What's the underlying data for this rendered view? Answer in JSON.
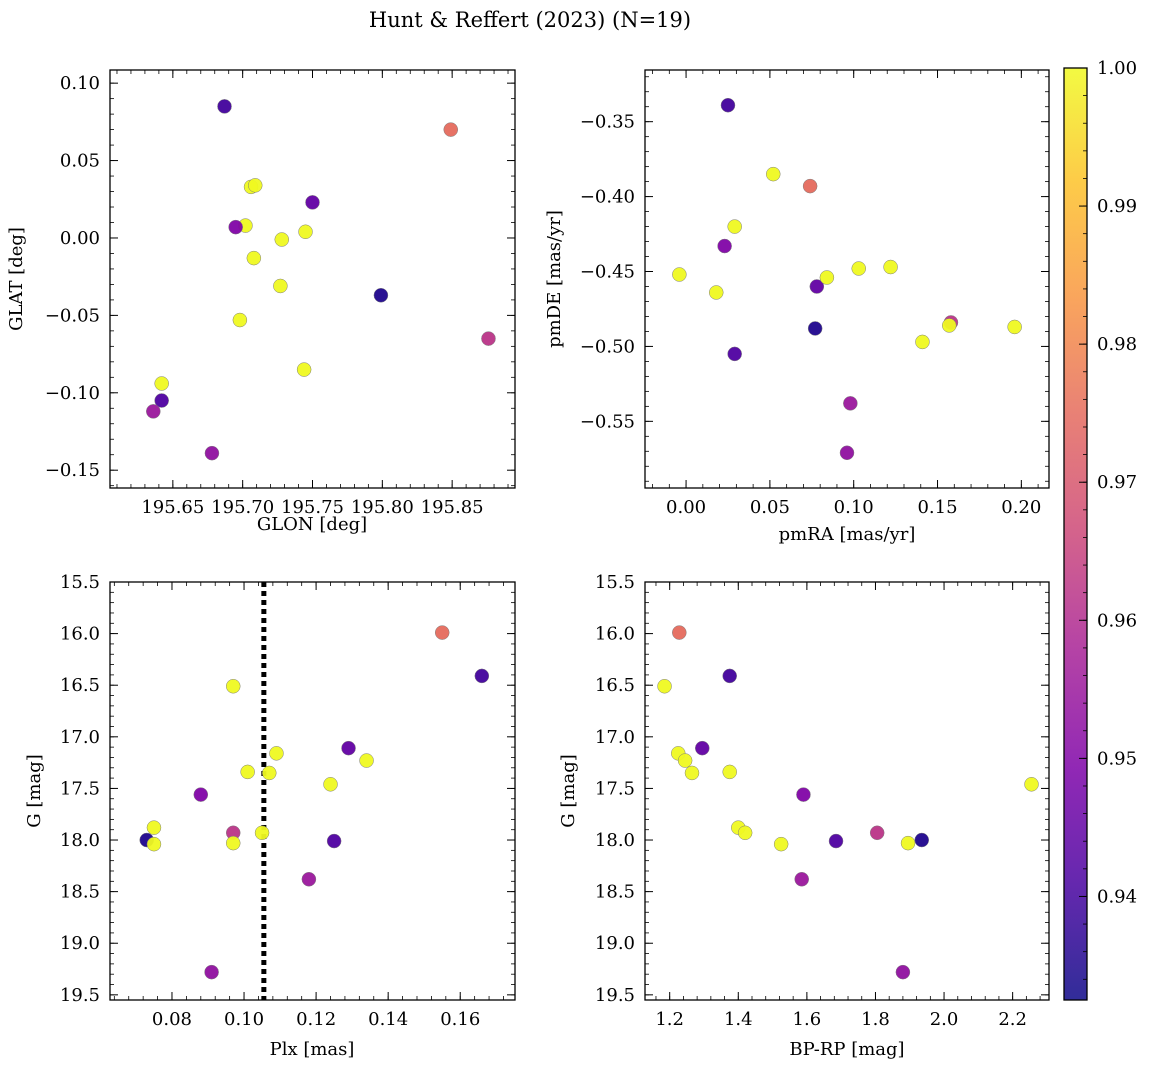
{
  "chart_data": {
    "type": "scatter",
    "title": "Hunt & Reffert (2023) (N=19)",
    "colormap": "plasma",
    "colorbar": {
      "range": [
        0.9325,
        1.0
      ],
      "ticks": [
        0.94,
        0.95,
        0.96,
        0.97,
        0.98,
        0.99,
        1.0
      ],
      "tick_labels": [
        "0.94",
        "0.95",
        "0.96",
        "0.97",
        "0.98",
        "0.99",
        "1.00"
      ]
    },
    "stars": [
      {
        "glon": 195.687,
        "glat": 0.085,
        "pmra": 0.025,
        "pmde": -0.339,
        "plx": 0.166,
        "g": 16.41,
        "bprp": 1.375,
        "c": 0.94
      },
      {
        "glon": 195.849,
        "glat": 0.07,
        "pmra": 0.074,
        "pmde": -0.393,
        "plx": 0.155,
        "g": 15.99,
        "bprp": 1.228,
        "c": 0.975
      },
      {
        "glon": 195.706,
        "glat": 0.033,
        "pmra": 0.052,
        "pmde": -0.385,
        "plx": 0.097,
        "g": 16.51,
        "bprp": 1.185,
        "c": 1.0
      },
      {
        "glon": 195.709,
        "glat": 0.034,
        "pmra": 0.029,
        "pmde": -0.42,
        "plx": 0.109,
        "g": 17.16,
        "bprp": 1.225,
        "c": 1.0
      },
      {
        "glon": 195.75,
        "glat": 0.023,
        "pmra": 0.078,
        "pmde": -0.46,
        "plx": 0.129,
        "g": 17.11,
        "bprp": 1.295,
        "c": 0.945
      },
      {
        "glon": 195.702,
        "glat": 0.008,
        "pmra": 0.122,
        "pmde": -0.447,
        "plx": 0.134,
        "g": 17.23,
        "bprp": 1.245,
        "c": 1.0
      },
      {
        "glon": 195.695,
        "glat": 0.007,
        "pmra": 0.023,
        "pmde": -0.433,
        "plx": 0.088,
        "g": 17.56,
        "bprp": 1.59,
        "c": 0.95
      },
      {
        "glon": 195.745,
        "glat": 0.004,
        "pmra": 0.103,
        "pmde": -0.448,
        "plx": 0.107,
        "g": 17.35,
        "bprp": 1.265,
        "c": 1.0
      },
      {
        "glon": 195.728,
        "glat": -0.001,
        "pmra": 0.084,
        "pmde": -0.454,
        "plx": 0.101,
        "g": 17.34,
        "bprp": 1.375,
        "c": 1.0
      },
      {
        "glon": 195.708,
        "glat": -0.013,
        "pmra": -0.004,
        "pmde": -0.452,
        "plx": 0.124,
        "g": 17.46,
        "bprp": 2.255,
        "c": 1.0
      },
      {
        "glon": 195.727,
        "glat": -0.031,
        "pmra": 0.018,
        "pmde": -0.464,
        "plx": 0.075,
        "g": 17.88,
        "bprp": 1.4,
        "c": 1.0
      },
      {
        "glon": 195.799,
        "glat": -0.037,
        "pmra": 0.077,
        "pmde": -0.488,
        "plx": 0.073,
        "g": 18.0,
        "bprp": 1.935,
        "c": 0.935
      },
      {
        "glon": 195.698,
        "glat": -0.053,
        "pmra": 0.141,
        "pmde": -0.497,
        "plx": 0.105,
        "g": 17.93,
        "bprp": 1.42,
        "c": 1.0
      },
      {
        "glon": 195.876,
        "glat": -0.065,
        "pmra": 0.158,
        "pmde": -0.484,
        "plx": 0.097,
        "g": 17.93,
        "bprp": 1.805,
        "c": 0.962
      },
      {
        "glon": 195.744,
        "glat": -0.085,
        "pmra": 0.157,
        "pmde": -0.486,
        "plx": 0.075,
        "g": 18.04,
        "bprp": 1.525,
        "c": 1.0
      },
      {
        "glon": 195.642,
        "glat": -0.094,
        "pmra": 0.196,
        "pmde": -0.487,
        "plx": 0.097,
        "g": 18.03,
        "bprp": 1.895,
        "c": 1.0
      },
      {
        "glon": 195.642,
        "glat": -0.105,
        "pmra": 0.029,
        "pmde": -0.505,
        "plx": 0.125,
        "g": 18.01,
        "bprp": 1.685,
        "c": 0.942
      },
      {
        "glon": 195.636,
        "glat": -0.112,
        "pmra": 0.098,
        "pmde": -0.538,
        "plx": 0.118,
        "g": 18.38,
        "bprp": 1.585,
        "c": 0.955
      },
      {
        "glon": 195.678,
        "glat": -0.139,
        "pmra": 0.096,
        "pmde": -0.571,
        "plx": 0.091,
        "g": 19.28,
        "bprp": 1.88,
        "c": 0.953
      }
    ],
    "panels": [
      {
        "id": "glon-glat",
        "x": "glon",
        "y": "glat",
        "xlabel": "GLON [deg]",
        "ylabel": "GLAT [deg]",
        "xlim": [
          195.605,
          195.895
        ],
        "ylim": [
          -0.1615,
          0.1085
        ],
        "yinvert": false,
        "xticks": [
          195.65,
          195.7,
          195.75,
          195.8,
          195.85
        ],
        "xticklabels": [
          "195.65",
          "195.70",
          "195.75",
          "195.80",
          "195.85"
        ],
        "yticks": [
          0.1,
          0.05,
          0.0,
          -0.05,
          -0.1,
          -0.15
        ],
        "yticklabels": [
          "0.10",
          "0.05",
          "0.00",
          "−0.05",
          "−0.10",
          "−0.15"
        ]
      },
      {
        "id": "pmra-pmde",
        "x": "pmra",
        "y": "pmde",
        "xlabel": "pmRA [mas/yr]",
        "ylabel": "pmDE [mas/yr]",
        "xlim": [
          -0.0245,
          0.2165
        ],
        "ylim": [
          -0.5945,
          -0.3155
        ],
        "yinvert": false,
        "xticks": [
          0.0,
          0.05,
          0.1,
          0.15,
          0.2
        ],
        "xticklabels": [
          "0.00",
          "0.05",
          "0.10",
          "0.15",
          "0.20"
        ],
        "yticks": [
          -0.35,
          -0.4,
          -0.45,
          -0.5,
          -0.55
        ],
        "yticklabels": [
          "−0.35",
          "−0.40",
          "−0.45",
          "−0.50",
          "−0.55"
        ]
      },
      {
        "id": "plx-g",
        "x": "plx",
        "y": "g",
        "xlabel": "Plx [mas]",
        "ylabel": "G [mag]",
        "xlim": [
          0.0628,
          0.1752
        ],
        "ylim": [
          15.5,
          19.55
        ],
        "yinvert": true,
        "xticks": [
          0.08,
          0.1,
          0.12,
          0.14,
          0.16
        ],
        "xticklabels": [
          "0.08",
          "0.10",
          "0.12",
          "0.14",
          "0.16"
        ],
        "yticks": [
          15.5,
          16.0,
          16.5,
          17.0,
          17.5,
          18.0,
          18.5,
          19.0,
          19.5
        ],
        "yticklabels": [
          "15.5",
          "16.0",
          "16.5",
          "17.0",
          "17.5",
          "18.0",
          "18.5",
          "19.0",
          "19.5"
        ],
        "vline": 0.1055
      },
      {
        "id": "bprp-g",
        "x": "bprp",
        "y": "g",
        "xlabel": "BP-RP [mag]",
        "ylabel": "G [mag]",
        "xlim": [
          1.128,
          2.306
        ],
        "ylim": [
          15.5,
          19.55
        ],
        "yinvert": true,
        "xticks": [
          1.2,
          1.4,
          1.6,
          1.8,
          2.0,
          2.2
        ],
        "xticklabels": [
          "1.2",
          "1.4",
          "1.6",
          "1.8",
          "2.0",
          "2.2"
        ],
        "yticks": [
          15.5,
          16.0,
          16.5,
          17.0,
          17.5,
          18.0,
          18.5,
          19.0,
          19.5
        ],
        "yticklabels": [
          "15.5",
          "16.0",
          "16.5",
          "17.0",
          "17.5",
          "18.0",
          "18.5",
          "19.0",
          "19.5"
        ]
      }
    ]
  }
}
